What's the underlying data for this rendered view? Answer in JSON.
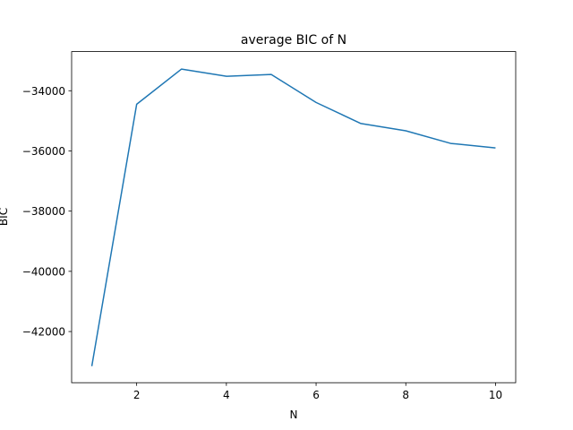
{
  "chart_data": {
    "type": "line",
    "title": "average BIC of N",
    "xlabel": "N",
    "ylabel": "BIC",
    "x": [
      1,
      2,
      3,
      4,
      5,
      6,
      7,
      8,
      9,
      10
    ],
    "series": [
      {
        "values": [
          -43150,
          -34450,
          -33280,
          -33520,
          -33460,
          -34390,
          -35090,
          -35330,
          -35750,
          -35900
        ],
        "color": "#1f77b4"
      }
    ],
    "xlim": [
      0.55,
      10.45
    ],
    "ylim": [
      -43700,
      -32700
    ],
    "xticks": [
      2,
      4,
      6,
      8,
      10
    ],
    "xtick_labels": [
      "2",
      "4",
      "6",
      "8",
      "10"
    ],
    "yticks": [
      -42000,
      -40000,
      -38000,
      -36000,
      -34000
    ],
    "ytick_labels": [
      "−42000",
      "−40000",
      "−38000",
      "−36000",
      "−34000"
    ],
    "grid": false,
    "legend": false
  }
}
